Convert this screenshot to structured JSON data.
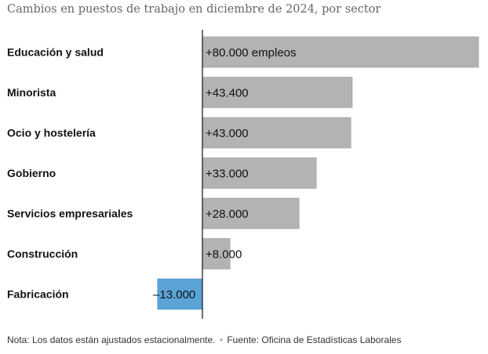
{
  "chart_data": {
    "type": "bar",
    "orientation": "horizontal",
    "title": "Cambios en puestos de trabajo en diciembre de 2024, por sector",
    "categories": [
      "Educación y salud",
      "Minorista",
      "Ocio y hostelería",
      "Gobierno",
      "Servicios empresariales",
      "Construcción",
      "Fabricación"
    ],
    "values": [
      80000,
      43400,
      43000,
      33000,
      28000,
      8000,
      -13000
    ],
    "value_labels": [
      "+80.000 empleos",
      "+43.400",
      "+43.000",
      "+33.000",
      "+28.000",
      "+8.000",
      " –13.000"
    ],
    "xlim": [
      -13000,
      80000
    ],
    "xlabel": "",
    "ylabel": "",
    "grid": false,
    "colors": {
      "positive": "#b3b3b3",
      "negative": "#5aa3d7",
      "axis": "#121212"
    }
  },
  "footer": {
    "note": "Nota: Los datos están ajustados estacionalmente.",
    "source": "Fuente: Oficina de Estadísticas Laborales"
  }
}
